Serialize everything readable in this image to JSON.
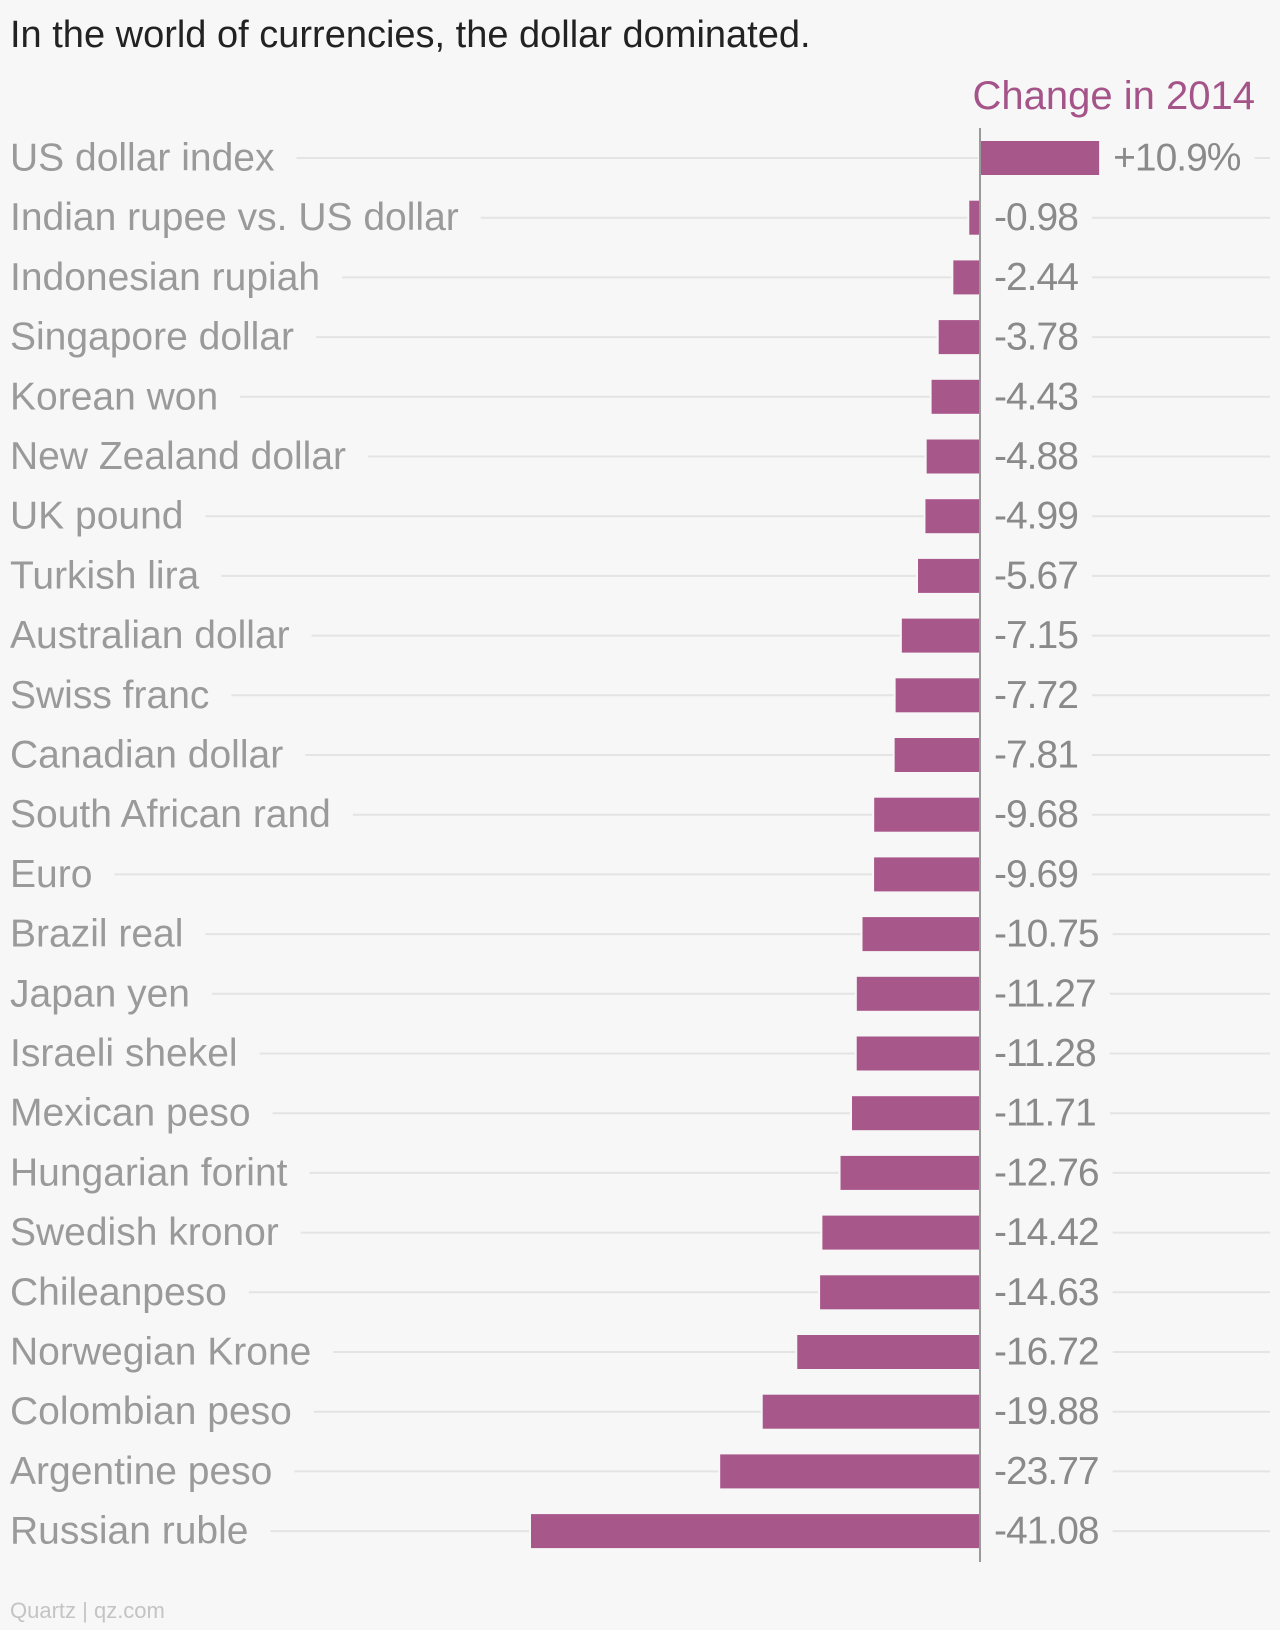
{
  "title": "In the world of currencies, the dollar dominated.",
  "series_label": "Change in 2014",
  "footer": "Quartz | qz.com",
  "colors": {
    "bar": "#a8578a",
    "text": "#9a9a9a",
    "grid": "#e4e4e4",
    "axis": "#9a9a9a"
  },
  "chart_data": {
    "type": "bar",
    "orientation": "horizontal",
    "categories": [
      "US dollar index",
      "Indian rupee vs. US dollar",
      "Indonesian rupiah",
      "Singapore dollar",
      "Korean won",
      "New Zealand dollar",
      "UK pound",
      "Turkish lira",
      "Australian dollar",
      "Swiss franc",
      "Canadian dollar",
      "South African rand",
      "Euro",
      "Brazil real",
      "Japan yen",
      "Israeli shekel",
      "Mexican peso",
      "Hungarian forint",
      "Swedish kronor",
      "Chileanpeso",
      "Norwegian Krone",
      "Colombian peso",
      "Argentine peso",
      "Russian ruble"
    ],
    "series": [
      {
        "name": "Change in 2014",
        "values": [
          10.9,
          -0.98,
          -2.44,
          -3.78,
          -4.43,
          -4.88,
          -4.99,
          -5.67,
          -7.15,
          -7.72,
          -7.81,
          -9.68,
          -9.69,
          -10.75,
          -11.27,
          -11.28,
          -11.71,
          -12.76,
          -14.42,
          -14.63,
          -16.72,
          -19.88,
          -23.77,
          -41.08
        ]
      }
    ],
    "value_labels": [
      "+10.9%",
      "-0.98",
      "-2.44",
      "-3.78",
      "-4.43",
      "-4.88",
      "-4.99",
      "-5.67",
      "-7.15",
      "-7.72",
      "-7.81",
      "-9.68",
      "-9.69",
      "-10.75",
      "-11.27",
      "-11.28",
      "-11.71",
      "-12.76",
      "-14.42",
      "-14.63",
      "-16.72",
      "-19.88",
      "-23.77",
      "-41.08"
    ],
    "xlim": [
      -41.08,
      10.9
    ],
    "grid": true,
    "legend": "none"
  }
}
